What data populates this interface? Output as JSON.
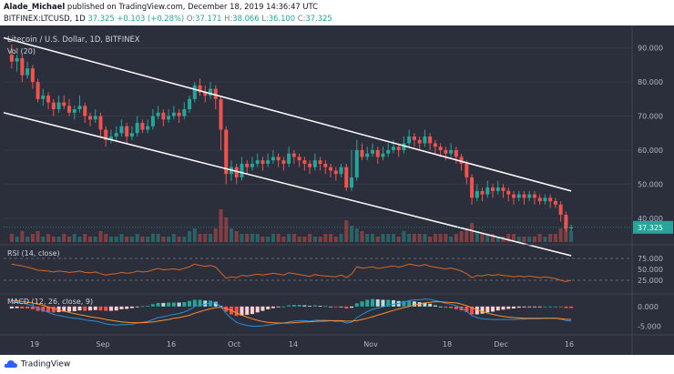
{
  "header": {
    "author": "Alade_Michael",
    "published": "published on TradingView.com, December 18, 2019 14:36:47 UTC",
    "symbol": "BITFINEX:LTCUSD, 1D",
    "change": "37.325",
    "change_delta": "+0.103 (+0.28%)",
    "o_label": "O:",
    "o_val": "37.171",
    "h_label": "H:",
    "h_val": "38.066",
    "l_label": "L:",
    "l_val": "36.100",
    "c_label": "C:",
    "c_val": "37.325"
  },
  "main_pane": {
    "title": "Litecoin / U.S. Dollar, 1D, BITFINEX",
    "vol_label": "Vol (20)",
    "price_labels": [
      "90.000",
      "80.000",
      "70.000",
      "60.000",
      "50.000",
      "40.000"
    ],
    "last_price": "37.325"
  },
  "rsi_pane": {
    "title": "RSI (14, close)",
    "labels": [
      "75.000",
      "50.000",
      "25.000"
    ]
  },
  "macd_pane": {
    "title": "MACD (12, 26, close, 9)",
    "labels": [
      "0.000",
      "-5.000"
    ]
  },
  "x_axis": {
    "labels": [
      "19",
      "Sep",
      "16",
      "Oct",
      "14",
      "Nov",
      "18",
      "Dec",
      "16"
    ]
  },
  "footer": {
    "logo": "TradingView"
  },
  "colors": {
    "background": "#2b2f3b",
    "up": "#26a69a",
    "down": "#ef5350",
    "channel": "#ffffff",
    "rsi": "#d4672a",
    "macd": "#2d8bd6",
    "signal": "#ff8c2b",
    "price_tag": "#26a69a"
  },
  "chart_data": {
    "type": "candlestick",
    "title": "Litecoin / U.S. Dollar, 1D, BITFINEX",
    "ylim": [
      33,
      95
    ],
    "candles": [
      [
        88,
        86,
        91,
        84
      ],
      [
        86,
        87,
        88,
        83
      ],
      [
        87,
        82,
        88,
        80
      ],
      [
        82,
        84,
        86,
        81
      ],
      [
        84,
        80,
        85,
        78
      ],
      [
        80,
        75,
        81,
        74
      ],
      [
        75,
        76,
        78,
        73
      ],
      [
        76,
        74,
        77,
        72
      ],
      [
        74,
        72,
        75,
        70
      ],
      [
        72,
        74,
        76,
        71
      ],
      [
        74,
        73,
        76,
        72
      ],
      [
        73,
        71,
        75,
        70
      ],
      [
        71,
        72,
        73,
        69
      ],
      [
        72,
        73,
        76,
        71
      ],
      [
        73,
        70,
        74,
        68
      ],
      [
        70,
        69,
        71,
        67
      ],
      [
        69,
        70,
        72,
        68
      ],
      [
        70,
        66,
        71,
        64
      ],
      [
        66,
        63,
        67,
        61
      ],
      [
        63,
        64,
        66,
        62
      ],
      [
        64,
        65,
        67,
        63
      ],
      [
        65,
        67,
        69,
        64
      ],
      [
        67,
        64,
        68,
        62
      ],
      [
        64,
        65,
        67,
        63
      ],
      [
        65,
        68,
        70,
        64
      ],
      [
        68,
        66,
        69,
        65
      ],
      [
        66,
        67,
        69,
        65
      ],
      [
        67,
        70,
        72,
        66
      ],
      [
        70,
        71,
        73,
        69
      ],
      [
        71,
        69,
        72,
        67
      ],
      [
        69,
        70,
        72,
        68
      ],
      [
        70,
        71,
        73,
        69
      ],
      [
        71,
        70,
        72,
        68
      ],
      [
        70,
        72,
        74,
        69
      ],
      [
        72,
        75,
        76,
        71
      ],
      [
        75,
        79,
        80,
        74
      ],
      [
        79,
        77,
        81,
        76
      ],
      [
        77,
        76,
        79,
        74
      ],
      [
        76,
        78,
        80,
        75
      ],
      [
        78,
        75,
        79,
        72
      ],
      [
        75,
        66,
        76,
        60
      ],
      [
        66,
        53,
        67,
        50
      ],
      [
        53,
        55,
        57,
        51
      ],
      [
        55,
        52,
        56,
        50
      ],
      [
        52,
        56,
        58,
        51
      ],
      [
        56,
        55,
        57,
        53
      ],
      [
        55,
        56,
        58,
        54
      ],
      [
        56,
        57,
        59,
        55
      ],
      [
        57,
        56,
        58,
        54
      ],
      [
        56,
        57,
        59,
        55
      ],
      [
        57,
        58,
        60,
        56
      ],
      [
        58,
        57,
        59,
        55
      ],
      [
        57,
        56,
        58,
        54
      ],
      [
        56,
        59,
        61,
        55
      ],
      [
        59,
        58,
        60,
        56
      ],
      [
        58,
        57,
        59,
        55
      ],
      [
        57,
        56,
        58,
        54
      ],
      [
        56,
        55,
        57,
        53
      ],
      [
        55,
        57,
        59,
        54
      ],
      [
        57,
        56,
        58,
        54
      ],
      [
        56,
        55,
        57,
        53
      ],
      [
        55,
        54,
        56,
        52
      ],
      [
        54,
        53,
        55,
        51
      ],
      [
        53,
        55,
        56,
        52
      ],
      [
        55,
        49,
        56,
        48
      ],
      [
        49,
        52,
        60,
        48
      ],
      [
        52,
        60,
        63,
        51
      ],
      [
        60,
        58,
        62,
        57
      ],
      [
        58,
        59,
        61,
        57
      ],
      [
        59,
        60,
        62,
        58
      ],
      [
        60,
        58,
        61,
        56
      ],
      [
        58,
        59,
        61,
        57
      ],
      [
        59,
        60,
        62,
        58
      ],
      [
        60,
        61,
        63,
        59
      ],
      [
        61,
        60,
        62,
        58
      ],
      [
        60,
        62,
        64,
        59
      ],
      [
        62,
        64,
        66,
        61
      ],
      [
        64,
        63,
        65,
        61
      ],
      [
        63,
        62,
        64,
        60
      ],
      [
        62,
        64,
        66,
        61
      ],
      [
        64,
        62,
        65,
        60
      ],
      [
        62,
        61,
        63,
        59
      ],
      [
        61,
        60,
        62,
        58
      ],
      [
        60,
        59,
        61,
        57
      ],
      [
        59,
        60,
        62,
        58
      ],
      [
        60,
        58,
        61,
        56
      ],
      [
        58,
        56,
        59,
        54
      ],
      [
        56,
        52,
        57,
        50
      ],
      [
        52,
        46,
        53,
        44
      ],
      [
        46,
        48,
        50,
        45
      ],
      [
        48,
        47,
        49,
        45
      ],
      [
        47,
        49,
        51,
        46
      ],
      [
        49,
        48,
        50,
        46
      ],
      [
        48,
        49,
        51,
        47
      ],
      [
        49,
        48,
        50,
        46
      ],
      [
        48,
        47,
        49,
        45
      ],
      [
        47,
        46,
        48,
        44
      ],
      [
        46,
        47,
        48,
        45
      ],
      [
        47,
        46,
        48,
        44
      ],
      [
        46,
        47,
        48,
        45
      ],
      [
        47,
        46,
        48,
        44
      ],
      [
        46,
        45,
        47,
        44
      ],
      [
        45,
        46,
        47,
        44
      ],
      [
        46,
        45,
        47,
        43
      ],
      [
        45,
        44,
        46,
        43
      ],
      [
        44,
        41,
        45,
        39
      ],
      [
        41,
        37,
        42,
        36
      ],
      [
        37.2,
        37.3,
        38.1,
        36.1
      ]
    ],
    "volume": [
      3,
      2,
      4,
      2,
      3,
      4,
      2,
      3,
      2,
      2,
      3,
      2,
      3,
      2,
      3,
      2,
      2,
      4,
      3,
      2,
      2,
      3,
      2,
      2,
      3,
      2,
      2,
      3,
      3,
      2,
      2,
      3,
      2,
      2,
      4,
      5,
      3,
      3,
      3,
      5,
      12,
      9,
      5,
      4,
      3,
      3,
      3,
      3,
      2,
      2,
      3,
      3,
      2,
      3,
      3,
      2,
      2,
      3,
      2,
      2,
      3,
      3,
      2,
      3,
      8,
      6,
      5,
      4,
      3,
      3,
      2,
      3,
      3,
      3,
      2,
      4,
      3,
      3,
      3,
      3,
      2,
      3,
      3,
      3,
      2,
      3,
      4,
      5,
      7,
      4,
      3,
      3,
      3,
      2,
      2,
      3,
      3,
      2,
      2,
      2,
      2,
      3,
      2,
      3,
      3,
      5,
      7,
      4
    ],
    "rsi": [
      62,
      60,
      58,
      55,
      52,
      48,
      47,
      46,
      44,
      46,
      45,
      43,
      44,
      46,
      43,
      42,
      44,
      40,
      37,
      39,
      40,
      43,
      41,
      42,
      46,
      44,
      45,
      49,
      52,
      49,
      50,
      51,
      49,
      52,
      56,
      62,
      59,
      57,
      59,
      55,
      42,
      30,
      33,
      31,
      36,
      35,
      37,
      39,
      37,
      39,
      41,
      39,
      37,
      42,
      40,
      38,
      36,
      34,
      38,
      36,
      35,
      34,
      33,
      37,
      31,
      39,
      56,
      53,
      54,
      56,
      52,
      54,
      56,
      58,
      55,
      58,
      62,
      60,
      58,
      61,
      57,
      55,
      53,
      51,
      53,
      50,
      46,
      40,
      31,
      36,
      35,
      38,
      36,
      38,
      36,
      35,
      33,
      35,
      33,
      35,
      33,
      31,
      33,
      31,
      29,
      25,
      22,
      25
    ],
    "macd": [
      1,
      1,
      0.8,
      0.6,
      0.2,
      -0.5,
      -1,
      -1.5,
      -2,
      -2.3,
      -2.5,
      -2.8,
      -3,
      -3.1,
      -3.4,
      -3.6,
      -3.7,
      -4,
      -4.4,
      -4.6,
      -4.7,
      -4.6,
      -4.6,
      -4.5,
      -4.2,
      -4.0,
      -3.8,
      -3.3,
      -2.8,
      -2.6,
      -2.3,
      -2.0,
      -1.8,
      -1.4,
      -0.8,
      0,
      0.4,
      0.6,
      0.9,
      0.9,
      0,
      -1.8,
      -3.0,
      -4.0,
      -4.5,
      -4.8,
      -5.0,
      -5.0,
      -4.9,
      -4.7,
      -4.5,
      -4.3,
      -4.2,
      -3.9,
      -3.7,
      -3.6,
      -3.6,
      -3.7,
      -3.5,
      -3.5,
      -3.5,
      -3.6,
      -3.8,
      -3.7,
      -4.2,
      -4.0,
      -2.8,
      -2.0,
      -1.3,
      -0.7,
      -0.4,
      -0.1,
      0.3,
      0.6,
      0.8,
      1.1,
      1.5,
      1.7,
      1.7,
      1.9,
      1.8,
      1.5,
      1.2,
      0.8,
      0.6,
      0.2,
      -0.4,
      -1.2,
      -2.3,
      -2.8,
      -3.1,
      -3.2,
      -3.3,
      -3.3,
      -3.3,
      -3.3,
      -3.3,
      -3.2,
      -3.2,
      -3.1,
      -3.1,
      -3.1,
      -3.0,
      -3.0,
      -3.0,
      -3.2,
      -3.6,
      -3.7
    ],
    "signal": [
      1.5,
      1.4,
      1.3,
      1.1,
      0.9,
      0.6,
      0.3,
      -0.1,
      -0.5,
      -0.9,
      -1.2,
      -1.5,
      -1.8,
      -2.1,
      -2.3,
      -2.6,
      -2.8,
      -3.0,
      -3.3,
      -3.5,
      -3.7,
      -3.9,
      -4.0,
      -4.1,
      -4.1,
      -4.1,
      -4.0,
      -3.9,
      -3.7,
      -3.5,
      -3.3,
      -3.0,
      -2.8,
      -2.5,
      -2.2,
      -1.7,
      -1.3,
      -0.9,
      -0.6,
      -0.3,
      -0.2,
      -0.5,
      -1.0,
      -1.6,
      -2.2,
      -2.7,
      -3.1,
      -3.5,
      -3.8,
      -4.0,
      -4.1,
      -4.2,
      -4.2,
      -4.2,
      -4.1,
      -4.0,
      -3.9,
      -3.9,
      -3.8,
      -3.7,
      -3.7,
      -3.6,
      -3.6,
      -3.6,
      -3.7,
      -3.7,
      -3.6,
      -3.3,
      -3.0,
      -2.6,
      -2.2,
      -1.8,
      -1.4,
      -1.0,
      -0.6,
      -0.3,
      0,
      0.4,
      0.6,
      0.9,
      1.1,
      1.2,
      1.2,
      1.1,
      1.0,
      0.9,
      0.6,
      0.2,
      -0.3,
      -0.8,
      -1.3,
      -1.7,
      -2.0,
      -2.3,
      -2.5,
      -2.7,
      -2.8,
      -2.9,
      -3.0,
      -3.0,
      -3.0,
      -3.0,
      -3.0,
      -3.0,
      -3.0,
      -3.1,
      -3.2,
      -3.3
    ],
    "channel_upper": [
      [
        0,
        93
      ],
      [
        107,
        48
      ]
    ],
    "channel_lower": [
      [
        0,
        71
      ],
      [
        107,
        29
      ]
    ]
  }
}
